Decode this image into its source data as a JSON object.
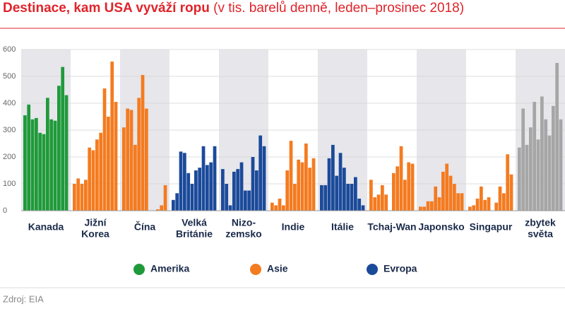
{
  "chart_data": {
    "type": "grouped-bar",
    "title": "Destinace, kam USA vyváží ropu",
    "subtitle": "(v tis. barelů denně, leden–prosinec 2018)",
    "source": "Zdroj: EIA",
    "ylim": [
      0,
      600
    ],
    "yticks": [
      0,
      100,
      200,
      300,
      400,
      500,
      600
    ],
    "grid": true,
    "series": [
      {
        "name": "Amerika",
        "color": "#1f9a3a",
        "groups": [
          {
            "label": [
              "Kanada"
            ],
            "values": [
              355,
              395,
              340,
              345,
              290,
              285,
              420,
              340,
              335,
              465,
              535,
              430
            ]
          }
        ]
      },
      {
        "name": "Asie",
        "color": "#f47b20",
        "groups": [
          {
            "label": [
              "Jižní",
              "Korea"
            ],
            "values": [
              100,
              120,
              100,
              115,
              235,
              225,
              265,
              290,
              455,
              350,
              555,
              405
            ]
          },
          {
            "label": [
              "Čína"
            ],
            "values": [
              310,
              380,
              375,
              245,
              420,
              505,
              380,
              0,
              0,
              5,
              20,
              95
            ]
          },
          {
            "label": [
              "Indie"
            ],
            "values": [
              30,
              20,
              45,
              20,
              150,
              260,
              100,
              190,
              180,
              250,
              160,
              195
            ]
          },
          {
            "label": [
              "Tchaj-Wan"
            ],
            "values": [
              115,
              50,
              60,
              95,
              60,
              0,
              140,
              165,
              240,
              115,
              180,
              175
            ]
          },
          {
            "label": [
              "Japonsko"
            ],
            "values": [
              15,
              15,
              35,
              35,
              90,
              50,
              145,
              175,
              130,
              100,
              65,
              65
            ]
          },
          {
            "label": [
              "Singapur"
            ],
            "values": [
              15,
              20,
              45,
              90,
              40,
              50,
              0,
              30,
              90,
              65,
              210,
              135
            ]
          }
        ]
      },
      {
        "name": "Evropa",
        "color": "#1b4a9a",
        "groups": [
          {
            "label": [
              "Velká",
              "Británie"
            ],
            "values": [
              40,
              65,
              220,
              215,
              140,
              100,
              150,
              160,
              240,
              170,
              180,
              240
            ]
          },
          {
            "label": [
              "Nizo-",
              "zemsko"
            ],
            "values": [
              155,
              100,
              20,
              145,
              155,
              180,
              75,
              75,
              200,
              150,
              280,
              240
            ]
          },
          {
            "label": [
              "Itálie"
            ],
            "values": [
              95,
              95,
              195,
              245,
              130,
              215,
              160,
              100,
              100,
              125,
              45,
              20
            ]
          }
        ]
      },
      {
        "name": null,
        "color": "#a6a6a6",
        "groups": [
          {
            "label": [
              "zbytek",
              "světa"
            ],
            "values": [
              235,
              380,
              245,
              310,
              405,
              265,
              425,
              340,
              280,
              390,
              550,
              340
            ]
          }
        ]
      }
    ],
    "order": [
      "Kanada",
      "Jižní",
      "Čína",
      "Velká",
      "Nizo-",
      "Indie",
      "Itálie",
      "Tchaj-Wan",
      "Japonsko",
      "Singapur",
      "zbytek"
    ]
  }
}
